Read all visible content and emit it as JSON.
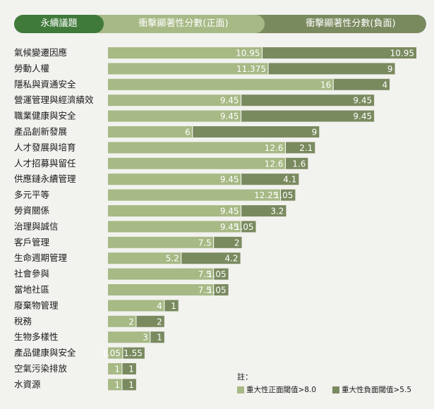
{
  "header": {
    "tab1": "永續議題",
    "tab2": "衝擊顯著性分數(正面)",
    "tab3": "衝擊顯著性分數(負面)"
  },
  "colors": {
    "positive": "#a7b985",
    "negative": "#7a8a5f",
    "header_dark": "#3f7a3a"
  },
  "legend": {
    "note": "註：",
    "positive": "重大性正面閾值>8.0",
    "negative": "重大性負面閾值>5.5"
  },
  "chart_data": {
    "type": "bar",
    "orientation": "horizontal",
    "stacked": true,
    "categories": [
      "氣候變遷因應",
      "勞動人權",
      "隱私與資通安全",
      "營運管理與經濟績效",
      "職業健康與安全",
      "產品創新發展",
      "人才發展與培育",
      "人才招募與留任",
      "供應鏈永續管理",
      "多元平等",
      "勞資關係",
      "治理與誠信",
      "客戶管理",
      "生命週期管理",
      "社會參與",
      "當地社區",
      "廢棄物管理",
      "稅務",
      "生物多樣性",
      "產品健康與安全",
      "空氣污染排放",
      "水資源"
    ],
    "series": [
      {
        "name": "衝擊顯著性分數(正面)",
        "values": [
          10.95,
          11.375,
          16,
          9.45,
          9.45,
          6,
          12.6,
          12.6,
          9.45,
          12.25,
          9.45,
          9.45,
          7.5,
          5.2,
          7.5,
          7.5,
          4,
          2,
          3,
          1.05,
          1,
          1
        ]
      },
      {
        "name": "衝擊顯著性分數(負面)",
        "values": [
          10.95,
          9,
          4,
          9.45,
          9.45,
          9,
          2.1,
          1.6,
          4.1,
          1.05,
          3.2,
          1.05,
          2,
          4.2,
          1.05,
          1.05,
          1,
          2,
          1,
          1.55,
          1,
          1
        ]
      }
    ],
    "labels_positive": [
      "10.95",
      "11.375",
      "16",
      "9.45",
      "9.45",
      "6",
      "12.6",
      "12.6",
      "9.45",
      "12.25",
      "9.45",
      "9.45",
      "7.5",
      "5.2",
      "7.5",
      "7.5",
      "4",
      "2",
      "3",
      "1.05",
      "1",
      "1"
    ],
    "labels_negative": [
      "10.95",
      "9",
      "4",
      "9.45",
      "9.45",
      "9",
      "2.1",
      "1.6",
      "4.1",
      "1.05",
      "3.2",
      "1.05",
      "2",
      "4.2",
      "1.05",
      "1.05",
      "1",
      "2",
      "1",
      "1.55",
      "1",
      "1"
    ],
    "xlim": [
      0,
      21.9
    ],
    "grid": false,
    "legend_position": "bottom-right"
  }
}
